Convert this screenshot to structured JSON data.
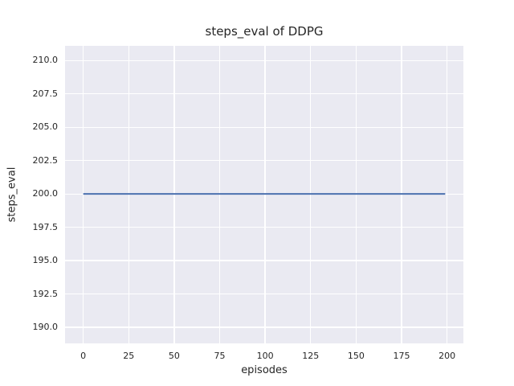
{
  "chart_data": {
    "type": "line",
    "title": "steps_eval of DDPG",
    "xlabel": "episodes",
    "ylabel": "steps_eval",
    "xlim": [
      -10,
      209
    ],
    "ylim": [
      188.8,
      211.1
    ],
    "x_ticks": {
      "values": [
        0,
        25,
        50,
        75,
        100,
        125,
        150,
        175,
        200
      ],
      "labels": [
        "0",
        "25",
        "50",
        "75",
        "100",
        "125",
        "150",
        "175",
        "200"
      ]
    },
    "y_ticks": {
      "values": [
        190,
        192.5,
        195,
        197.5,
        200,
        202.5,
        205,
        207.5,
        210
      ],
      "labels": [
        "190.0",
        "192.5",
        "195.0",
        "197.5",
        "200.0",
        "202.5",
        "205.0",
        "207.5",
        "210.0"
      ]
    },
    "grid": true,
    "legend": "none",
    "plot_background": "#eaeaf2",
    "grid_color": "#ffffff",
    "text_color": "#262626",
    "series": [
      {
        "name": "DDPG",
        "color": "#4c72b0",
        "x": [
          0,
          199
        ],
        "y": [
          200,
          200
        ],
        "description": "constant steps_eval = 200 for every evaluated episode from 0 to 199"
      }
    ]
  }
}
